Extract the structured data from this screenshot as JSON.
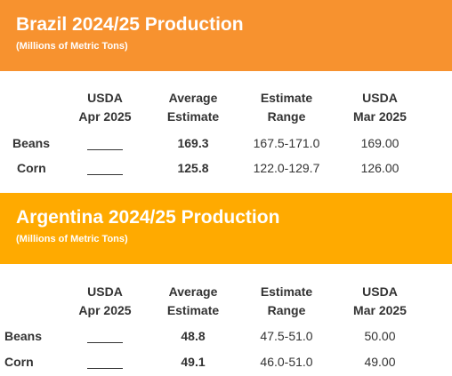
{
  "colors": {
    "brazil_banner": "#F7922F",
    "argentina_banner": "#FFAA00",
    "text": "#333333"
  },
  "columns": {
    "usda_apr": [
      "USDA",
      "Apr 2025"
    ],
    "average": [
      "Average",
      "Estimate"
    ],
    "range": [
      "Estimate",
      "Range"
    ],
    "usda_mar": [
      "USDA",
      "Mar 2025"
    ]
  },
  "brazil": {
    "title": "Brazil 2024/25 Production",
    "subtitle": "(Millions of Metric Tons)",
    "rows": [
      {
        "label": "Beans",
        "usda_apr": "",
        "average": "169.3",
        "range": "167.5-171.0",
        "usda_mar": "169.00"
      },
      {
        "label": "Corn",
        "usda_apr": "",
        "average": "125.8",
        "range": "122.0-129.7",
        "usda_mar": "126.00"
      }
    ]
  },
  "argentina": {
    "title": "Argentina 2024/25 Production",
    "subtitle": "(Millions of Metric Tons)",
    "rows": [
      {
        "label": "Beans",
        "usda_apr": "",
        "average": "48.8",
        "range": "47.5-51.0",
        "usda_mar": "50.00"
      },
      {
        "label": "Corn",
        "usda_apr": "",
        "average": "49.1",
        "range": "46.0-51.0",
        "usda_mar": "49.00"
      }
    ]
  }
}
